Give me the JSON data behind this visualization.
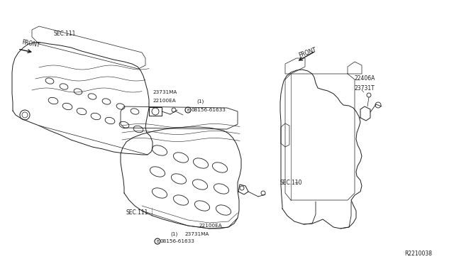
{
  "bg_color": "#ffffff",
  "line_color": "#1a1a1a",
  "labels": {
    "top_bolt_circle": "B",
    "top_bolt": "08156-61633",
    "top_bolt_sub": "(1)",
    "top_sensor": "23731MA",
    "top_cam": "22100EA",
    "sec111_top": "SEC.111",
    "sec110": "SEC.110",
    "sec111_bot": "SEC.111",
    "bot_bolt_circle": "B",
    "bot_bolt": "08156-61633",
    "bot_bolt_sub": "(1)",
    "bot_sensor": "23731MA",
    "bot_cam": "22100EA",
    "front_left": "FRONT",
    "front_right": "FRONT",
    "right_sensor1": "23731T",
    "right_sensor2": "22406A",
    "ref_code": "R2210038"
  }
}
